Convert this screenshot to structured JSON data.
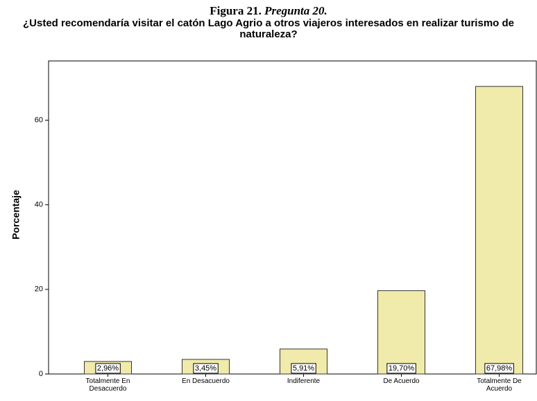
{
  "figure_label": "Figura 21.",
  "figure_caption": "Pregunta 20.",
  "chart_data": {
    "type": "bar",
    "title": "¿Usted recomendaría visitar el catón Lago Agrio a otros viajeros interesados en realizar turismo de naturaleza?",
    "y_label": "Porcentaje",
    "categories": [
      "Totalmente En Desacuerdo",
      "En Desacuerdo",
      "Indiferente",
      "De Acuerdo",
      "Totalmente De Acuerdo"
    ],
    "values": [
      2.96,
      3.45,
      5.91,
      19.7,
      67.98
    ],
    "value_labels": [
      "2,96%",
      "3,45%",
      "5,91%",
      "19,70%",
      "67,98%"
    ],
    "color": "#f0eaab",
    "ylim": [
      0,
      74
    ],
    "yticks": [
      0,
      20,
      40,
      60
    ],
    "grid": false
  }
}
